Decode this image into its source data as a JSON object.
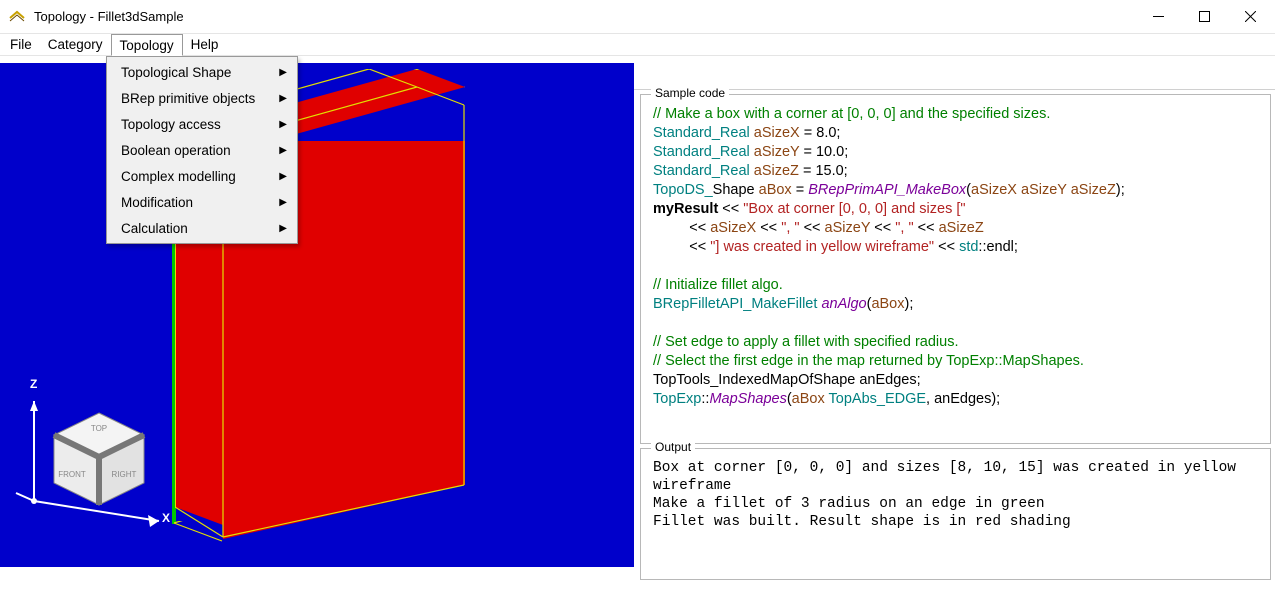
{
  "window": {
    "title": "Topology - Fillet3dSample"
  },
  "menus": {
    "items": [
      "File",
      "Category",
      "Topology",
      "Help"
    ],
    "open_index": 2,
    "dropdown": [
      "Topological Shape",
      "BRep primitive objects",
      "Topology access",
      "Boolean operation",
      "Complex modelling",
      "Modification",
      "Calculation"
    ]
  },
  "panels": {
    "code_title": "Sample code",
    "output_title": "Output"
  },
  "code_tokens": [
    [
      [
        "c",
        "// Make a box with a corner at [0, 0, 0] and the specified sizes."
      ]
    ],
    [
      [
        "t",
        "Standard_Real"
      ],
      [
        "",
        ", "
      ],
      [
        "var",
        "aSizeX"
      ],
      [
        "",
        " = 8.0;"
      ]
    ],
    [
      [
        "t",
        "Standard_Real"
      ],
      [
        "",
        ", "
      ],
      [
        "var",
        "aSizeY"
      ],
      [
        "",
        " = 10.0;"
      ]
    ],
    [
      [
        "t",
        "Standard_Real"
      ],
      [
        "",
        ", "
      ],
      [
        "var",
        "aSizeZ"
      ],
      [
        "",
        " = 15.0;"
      ]
    ],
    [
      [
        "t",
        "TopoDS_"
      ],
      [
        "",
        "Shape "
      ],
      [
        "var",
        "aBox"
      ],
      [
        "",
        " = "
      ],
      [
        "fnc",
        "BRepPrimAPI_MakeBox"
      ],
      [
        "",
        "("
      ],
      [
        "var",
        "aSizeX"
      ],
      [
        "",
        ", "
      ],
      [
        "var",
        "aSizeY"
      ],
      [
        "",
        ", "
      ],
      [
        "var",
        "aSizeZ"
      ],
      [
        "",
        ");"
      ]
    ],
    [
      [
        "kwd",
        "myResult"
      ],
      [
        "",
        " << "
      ],
      [
        "str",
        "\"Box at corner [0, 0, 0] and sizes [\""
      ]
    ],
    [
      [
        "",
        "         << "
      ],
      [
        "var",
        "aSizeX"
      ],
      [
        "",
        " << "
      ],
      [
        "str",
        "\", \""
      ],
      [
        "",
        " << "
      ],
      [
        "var",
        "aSizeY"
      ],
      [
        "",
        " << "
      ],
      [
        "str",
        "\", \""
      ],
      [
        "",
        " << "
      ],
      [
        "var",
        "aSizeZ"
      ]
    ],
    [
      [
        "",
        "         << "
      ],
      [
        "str",
        "\"] was created in yellow wireframe\""
      ],
      [
        "",
        " << "
      ],
      [
        "t",
        "std"
      ],
      [
        "",
        "::endl;"
      ]
    ],
    [
      [
        "",
        ""
      ]
    ],
    [
      [
        "c",
        "// Initialize fillet algo."
      ]
    ],
    [
      [
        "t",
        "BRepFilletAPI_MakeFillet"
      ],
      [
        "",
        " "
      ],
      [
        "fnc",
        "anAlgo"
      ],
      [
        "",
        "("
      ],
      [
        "var",
        "aBox"
      ],
      [
        "",
        ");"
      ]
    ],
    [
      [
        "",
        ""
      ]
    ],
    [
      [
        "c",
        "// Set edge to apply a fillet with specified radius."
      ]
    ],
    [
      [
        "c",
        "// Select the first edge in the map returned by TopExp::MapShapes."
      ]
    ],
    [
      [
        "",
        "TopTools_IndexedMapOfShape anEdges;"
      ]
    ],
    [
      [
        "t",
        "TopExp"
      ],
      [
        "",
        "::"
      ],
      [
        "fnc",
        "MapShapes"
      ],
      [
        "",
        "("
      ],
      [
        "var",
        "aBox"
      ],
      [
        "",
        ", "
      ],
      [
        "t",
        "TopAbs_EDGE"
      ],
      [
        "",
        ", anEdges);"
      ]
    ]
  ],
  "output_text": "Box at corner [0, 0, 0] and sizes [8, 10, 15] was created in yellow wireframe\nMake a fillet of 3 radius on an edge in green\nFillet was built. Result shape is in red shading",
  "viewcube_labels": {
    "top": "TOP",
    "front": "FRONT",
    "right": "RIGHT"
  },
  "axis_labels": {
    "x": "X",
    "z": "Z"
  },
  "colors": {
    "viewport_bg": "#0000cb",
    "box_fill": "#e00000",
    "box_edge": "#e3df00",
    "z_axis": "#00c800"
  }
}
